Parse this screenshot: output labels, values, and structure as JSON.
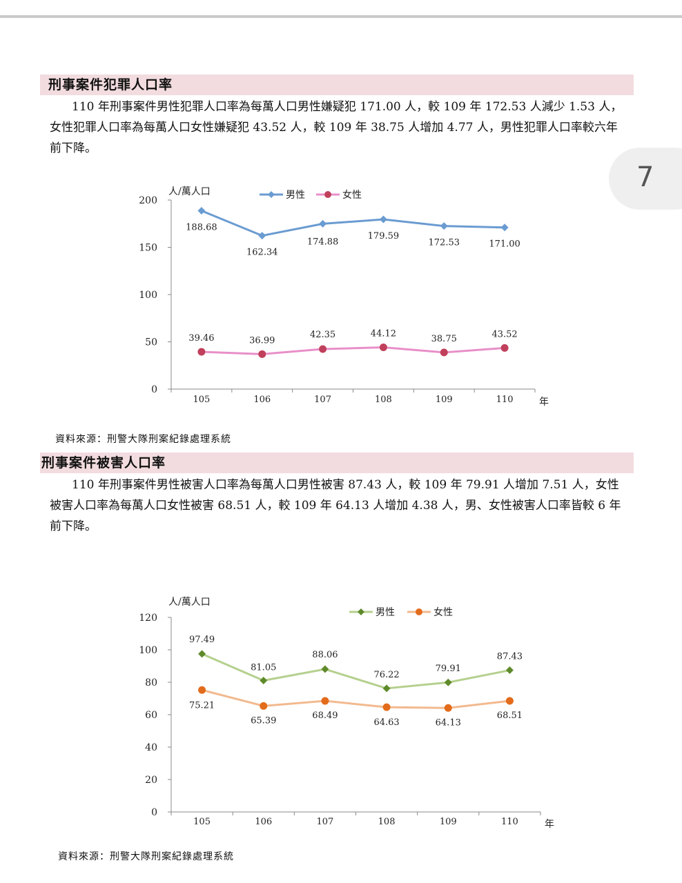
{
  "page_number": "7",
  "sections": [
    {
      "heading": "刑事案件犯罪人口率",
      "paragraph": "110 年刑事案件男性犯罪人口率為每萬人口男性嫌疑犯 171.00 人，較 109 年 172.53 人減少 1.53 人，女性犯罪人口率為每萬人口女性嫌疑犯 43.52 人，較 109 年 38.75 人增加 4.77 人，男性犯罪人口率較六年前下降。",
      "source": "資料來源：刑警大隊刑案紀錄處理系統"
    },
    {
      "heading": "刑事案件被害人口率",
      "paragraph": "110 年刑事案件男性被害人口率為每萬人口男性被害 87.43 人，較 109 年 79.91 人增加 7.51 人，女性被害人口率為每萬人口女性被害 68.51 人，較 109 年 64.13 人增加 4.38 人，男、女性被害人口率皆較 6 年前下降。",
      "source": "資料來源：刑警大隊刑案紀錄處理系統"
    }
  ],
  "chart_data": [
    {
      "type": "line",
      "title": "",
      "ylabel": "人/萬人口",
      "xlabel": "年",
      "categories": [
        "105",
        "106",
        "107",
        "108",
        "109",
        "110"
      ],
      "ylim": [
        0,
        200
      ],
      "yticks": [
        0,
        50,
        100,
        150,
        200
      ],
      "legend_position": "top",
      "series": [
        {
          "name": "男性",
          "values": [
            188.68,
            162.34,
            174.88,
            179.59,
            172.53,
            171.0
          ],
          "labels": [
            "188.68",
            "162.34",
            "174.88",
            "179.59",
            "172.53",
            "171.00"
          ],
          "color": "#6a9bd1",
          "marker": "diamond"
        },
        {
          "name": "女性",
          "values": [
            39.46,
            36.99,
            42.35,
            44.12,
            38.75,
            43.52
          ],
          "labels": [
            "39.46",
            "36.99",
            "42.35",
            "44.12",
            "38.75",
            "43.52"
          ],
          "color": "#e88fc8",
          "marker": "circle",
          "marker_color": "#c0405c"
        }
      ]
    },
    {
      "type": "line",
      "title": "",
      "ylabel": "人/萬人口",
      "xlabel": "年",
      "categories": [
        "105",
        "106",
        "107",
        "108",
        "109",
        "110"
      ],
      "ylim": [
        0,
        120
      ],
      "yticks": [
        0,
        20,
        40,
        60,
        80,
        100,
        120
      ],
      "legend_position": "top-right",
      "series": [
        {
          "name": "男性",
          "values": [
            97.49,
            81.05,
            88.06,
            76.22,
            79.91,
            87.43
          ],
          "labels": [
            "97.49",
            "81.05",
            "88.06",
            "76.22",
            "79.91",
            "87.43"
          ],
          "color": "#b5d08e",
          "marker": "diamond",
          "marker_color": "#5f8a2b"
        },
        {
          "name": "女性",
          "values": [
            75.21,
            65.39,
            68.49,
            64.63,
            64.13,
            68.51
          ],
          "labels": [
            "75.21",
            "65.39",
            "68.49",
            "64.63",
            "64.13",
            "68.51"
          ],
          "color": "#f2b98e",
          "marker": "circle",
          "marker_color": "#e36c1c"
        }
      ]
    }
  ]
}
